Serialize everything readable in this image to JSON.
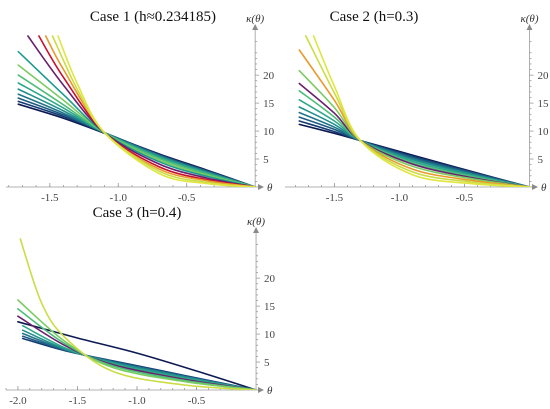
{
  "chart_data": [
    {
      "type": "line",
      "title": "Case 1 (h≈0.234185)",
      "xlabel": "θ",
      "ylabel": "κ(θ)",
      "xlim": [
        -1.82,
        0.05
      ],
      "ylim": [
        0,
        27
      ],
      "xticks": [
        -1.5,
        -1.0,
        -0.5
      ],
      "xtick_labels": [
        "-1.5",
        "-1.0",
        "-0.5"
      ],
      "yticks": [
        5,
        10,
        15,
        20
      ],
      "ytick_labels": [
        "5",
        "10",
        "15",
        "20"
      ],
      "grid": false,
      "series": [
        {
          "color": "#0d1a52",
          "points": [
            [
              -1.73,
              14.8
            ],
            [
              -1.4,
              12.3
            ],
            [
              -1.1,
              9.6
            ],
            [
              -0.7,
              5.9
            ],
            [
              -0.35,
              3.0
            ],
            [
              0,
              0
            ]
          ]
        },
        {
          "color": "#123b73",
          "points": [
            [
              -1.73,
              15.3
            ],
            [
              -1.4,
              12.6
            ],
            [
              -1.1,
              9.7
            ],
            [
              -0.7,
              5.8
            ],
            [
              -0.35,
              2.9
            ],
            [
              0,
              0
            ]
          ]
        },
        {
          "color": "#1f5b82",
          "points": [
            [
              -1.73,
              15.9
            ],
            [
              -1.4,
              12.9
            ],
            [
              -1.1,
              9.7
            ],
            [
              -0.7,
              5.7
            ],
            [
              -0.35,
              2.8
            ],
            [
              0,
              0
            ]
          ]
        },
        {
          "color": "#21758a",
          "points": [
            [
              -1.73,
              16.6
            ],
            [
              -1.4,
              13.2
            ],
            [
              -1.1,
              9.7
            ],
            [
              -0.7,
              5.6
            ],
            [
              -0.35,
              2.7
            ],
            [
              0,
              0
            ]
          ]
        },
        {
          "color": "#22908d",
          "points": [
            [
              -1.73,
              17.5
            ],
            [
              -1.4,
              13.6
            ],
            [
              -1.1,
              9.7
            ],
            [
              -0.7,
              5.5
            ],
            [
              -0.35,
              2.6
            ],
            [
              0,
              0
            ]
          ]
        },
        {
          "color": "#2fa88a",
          "points": [
            [
              -1.73,
              18.6
            ],
            [
              -1.4,
              14.1
            ],
            [
              -1.1,
              9.7
            ],
            [
              -0.7,
              5.3
            ],
            [
              -0.35,
              2.5
            ],
            [
              0,
              0
            ]
          ]
        },
        {
          "color": "#4fbd7a",
          "points": [
            [
              -1.73,
              20.0
            ],
            [
              -1.4,
              14.7
            ],
            [
              -1.1,
              9.7
            ],
            [
              -0.7,
              5.1
            ],
            [
              -0.35,
              2.3
            ],
            [
              0,
              0
            ]
          ]
        },
        {
          "color": "#7acb61",
          "points": [
            [
              -1.73,
              21.8
            ],
            [
              -1.4,
              15.5
            ],
            [
              -1.1,
              9.7
            ],
            [
              -0.7,
              4.8
            ],
            [
              -0.35,
              2.1
            ],
            [
              0,
              0
            ]
          ]
        },
        {
          "color": "#1a9b90",
          "points": [
            [
              -1.73,
              24.2
            ],
            [
              -1.4,
              16.5
            ],
            [
              -1.1,
              9.7
            ],
            [
              -0.7,
              4.5
            ],
            [
              -0.35,
              1.9
            ],
            [
              0,
              0
            ]
          ]
        },
        {
          "color": "#6a1f6e",
          "points": [
            [
              -1.66,
              27.0
            ],
            [
              -1.4,
              18.2
            ],
            [
              -1.1,
              9.7
            ],
            [
              -0.7,
              4.1
            ],
            [
              -0.35,
              1.6
            ],
            [
              0,
              0
            ]
          ]
        },
        {
          "color": "#c8102e",
          "points": [
            [
              -1.58,
              27.0
            ],
            [
              -1.4,
              19.6
            ],
            [
              -1.1,
              9.7
            ],
            [
              -0.7,
              3.6
            ],
            [
              -0.35,
              1.3
            ],
            [
              0,
              0
            ]
          ]
        },
        {
          "color": "#e89a2c",
          "points": [
            [
              -1.53,
              27.0
            ],
            [
              -1.4,
              21.0
            ],
            [
              -1.1,
              9.7
            ],
            [
              -0.7,
              3.2
            ],
            [
              -0.35,
              1.1
            ],
            [
              0,
              0
            ]
          ]
        },
        {
          "color": "#cbdc44",
          "points": [
            [
              -1.48,
              27.0
            ],
            [
              -1.3,
              17.5
            ],
            [
              -1.1,
              9.7
            ],
            [
              -0.7,
              2.8
            ],
            [
              -0.35,
              0.8
            ],
            [
              0,
              0
            ]
          ]
        },
        {
          "color": "#dfe640",
          "points": [
            [
              -1.44,
              27.0
            ],
            [
              -1.3,
              18.5
            ],
            [
              -1.1,
              9.7
            ],
            [
              -0.7,
              2.4
            ],
            [
              -0.35,
              0.6
            ],
            [
              0,
              0
            ]
          ]
        }
      ]
    },
    {
      "type": "line",
      "title": "Case 2 (h=0.3)",
      "xlabel": "θ",
      "ylabel": "κ(θ)",
      "xlim": [
        -1.88,
        0.05
      ],
      "ylim": [
        0,
        27
      ],
      "xticks": [
        -1.5,
        -1.0,
        -0.5
      ],
      "xtick_labels": [
        "-1.5",
        "-1.0",
        "-0.5"
      ],
      "yticks": [
        5,
        10,
        15,
        20
      ],
      "ytick_labels": [
        "5",
        "10",
        "15",
        "20"
      ],
      "grid": false,
      "series": [
        {
          "color": "#0d1a52",
          "points": [
            [
              -1.77,
              11.2
            ],
            [
              -1.5,
              9.6
            ],
            [
              -1.3,
              8.3
            ],
            [
              -0.9,
              5.7
            ],
            [
              -0.45,
              2.8
            ],
            [
              0,
              0
            ]
          ]
        },
        {
          "color": "#123b73",
          "points": [
            [
              -1.77,
              11.8
            ],
            [
              -1.5,
              9.9
            ],
            [
              -1.3,
              8.3
            ],
            [
              -0.9,
              5.5
            ],
            [
              -0.45,
              2.7
            ],
            [
              0,
              0
            ]
          ]
        },
        {
          "color": "#1f5b82",
          "points": [
            [
              -1.77,
              12.5
            ],
            [
              -1.5,
              10.3
            ],
            [
              -1.3,
              8.3
            ],
            [
              -0.9,
              5.3
            ],
            [
              -0.45,
              2.6
            ],
            [
              0,
              0
            ]
          ]
        },
        {
          "color": "#21758a",
          "points": [
            [
              -1.77,
              13.3
            ],
            [
              -1.5,
              10.7
            ],
            [
              -1.3,
              8.3
            ],
            [
              -0.9,
              5.1
            ],
            [
              -0.45,
              2.4
            ],
            [
              0,
              0
            ]
          ]
        },
        {
          "color": "#22908d",
          "points": [
            [
              -1.77,
              14.3
            ],
            [
              -1.5,
              11.2
            ],
            [
              -1.3,
              8.3
            ],
            [
              -0.9,
              4.9
            ],
            [
              -0.45,
              2.3
            ],
            [
              0,
              0
            ]
          ]
        },
        {
          "color": "#2fa88a",
          "points": [
            [
              -1.77,
              15.6
            ],
            [
              -1.5,
              11.8
            ],
            [
              -1.3,
              8.3
            ],
            [
              -0.9,
              4.6
            ],
            [
              -0.45,
              2.1
            ],
            [
              0,
              0
            ]
          ]
        },
        {
          "color": "#4fbd7a",
          "points": [
            [
              -1.77,
              17.2
            ],
            [
              -1.5,
              12.5
            ],
            [
              -1.3,
              8.3
            ],
            [
              -0.9,
              4.3
            ],
            [
              -0.45,
              1.9
            ],
            [
              0,
              0
            ]
          ]
        },
        {
          "color": "#6a1f6e",
          "points": [
            [
              -1.77,
              18.5
            ],
            [
              -1.5,
              13.2
            ],
            [
              -1.3,
              8.3
            ],
            [
              -0.9,
              4.1
            ],
            [
              -0.45,
              1.7
            ],
            [
              0,
              0
            ]
          ]
        },
        {
          "color": "#7acb61",
          "points": [
            [
              -1.77,
              20.8
            ],
            [
              -1.5,
              14.2
            ],
            [
              -1.3,
              8.3
            ],
            [
              -0.9,
              3.7
            ],
            [
              -0.45,
              1.5
            ],
            [
              0,
              0
            ]
          ]
        },
        {
          "color": "#e89a2c",
          "points": [
            [
              -1.77,
              24.5
            ],
            [
              -1.5,
              15.5
            ],
            [
              -1.3,
              8.3
            ],
            [
              -0.9,
              3.2
            ],
            [
              -0.45,
              1.2
            ],
            [
              0,
              0
            ]
          ]
        },
        {
          "color": "#cbdc44",
          "points": [
            [
              -1.72,
              27.0
            ],
            [
              -1.5,
              16.8
            ],
            [
              -1.3,
              8.3
            ],
            [
              -0.9,
              2.7
            ],
            [
              -0.45,
              0.9
            ],
            [
              0,
              0
            ]
          ]
        },
        {
          "color": "#dfe640",
          "points": [
            [
              -1.66,
              27.0
            ],
            [
              -1.5,
              18.0
            ],
            [
              -1.3,
              8.3
            ],
            [
              -0.9,
              2.2
            ],
            [
              -0.45,
              0.6
            ],
            [
              0,
              0
            ]
          ]
        }
      ]
    },
    {
      "type": "line",
      "title": "Case 3 (h=0.4)",
      "xlabel": "θ",
      "ylabel": "κ(θ)",
      "xlim": [
        -2.1,
        0.05
      ],
      "ylim": [
        0,
        27
      ],
      "xticks": [
        -2.0,
        -1.5,
        -1.0,
        -0.5
      ],
      "xtick_labels": [
        "-2.0",
        "-1.5",
        "-1.0",
        "-0.5"
      ],
      "yticks": [
        5,
        10,
        15,
        20
      ],
      "ytick_labels": [
        "5",
        "10",
        "15",
        "20"
      ],
      "grid": false,
      "series": [
        {
          "color": "#0d1a52",
          "points": [
            [
              -2.0,
              12.2
            ],
            [
              -1.5,
              9.3
            ],
            [
              -1.0,
              6.6
            ],
            [
              -0.5,
              3.4
            ],
            [
              0,
              0
            ]
          ]
        },
        {
          "color": "#123b73",
          "points": [
            [
              -1.96,
              9.2
            ],
            [
              -1.6,
              7.0
            ],
            [
              -1.2,
              5.2
            ],
            [
              -0.6,
              2.6
            ],
            [
              0,
              0
            ]
          ]
        },
        {
          "color": "#1f5b82",
          "points": [
            [
              -1.96,
              9.6
            ],
            [
              -1.6,
              7.1
            ],
            [
              -1.2,
              5.1
            ],
            [
              -0.6,
              2.5
            ],
            [
              0,
              0
            ]
          ]
        },
        {
          "color": "#21758a",
          "points": [
            [
              -1.96,
              10.1
            ],
            [
              -1.6,
              7.2
            ],
            [
              -1.2,
              5.0
            ],
            [
              -0.6,
              2.4
            ],
            [
              0,
              0
            ]
          ]
        },
        {
          "color": "#22908d",
          "points": [
            [
              -1.96,
              10.7
            ],
            [
              -1.6,
              7.3
            ],
            [
              -1.2,
              4.9
            ],
            [
              -0.6,
              2.3
            ],
            [
              0,
              0
            ]
          ]
        },
        {
          "color": "#2fa88a",
          "points": [
            [
              -1.96,
              11.5
            ],
            [
              -1.6,
              7.5
            ],
            [
              -1.2,
              4.7
            ],
            [
              -0.6,
              2.1
            ],
            [
              0,
              0
            ]
          ]
        },
        {
          "color": "#6a1f6e",
          "points": [
            [
              -2.0,
              13.2
            ],
            [
              -1.6,
              7.9
            ],
            [
              -1.2,
              4.5
            ],
            [
              -0.6,
              1.9
            ],
            [
              0,
              0
            ]
          ]
        },
        {
          "color": "#4fbd7a",
          "points": [
            [
              -2.0,
              14.5
            ],
            [
              -1.6,
              8.2
            ],
            [
              -1.2,
              4.3
            ],
            [
              -0.6,
              1.7
            ],
            [
              0,
              0
            ]
          ]
        },
        {
          "color": "#7acb61",
          "points": [
            [
              -2.0,
              16.1
            ],
            [
              -1.6,
              8.6
            ],
            [
              -1.2,
              4.0
            ],
            [
              -0.6,
              1.5
            ],
            [
              0,
              0
            ]
          ]
        },
        {
          "color": "#cbdc44",
          "points": [
            [
              -1.98,
              27.0
            ],
            [
              -1.8,
              15.5
            ],
            [
              -1.6,
              9.3
            ],
            [
              -1.2,
              3.3
            ],
            [
              -0.6,
              0.9
            ],
            [
              0,
              0
            ]
          ]
        }
      ]
    }
  ]
}
